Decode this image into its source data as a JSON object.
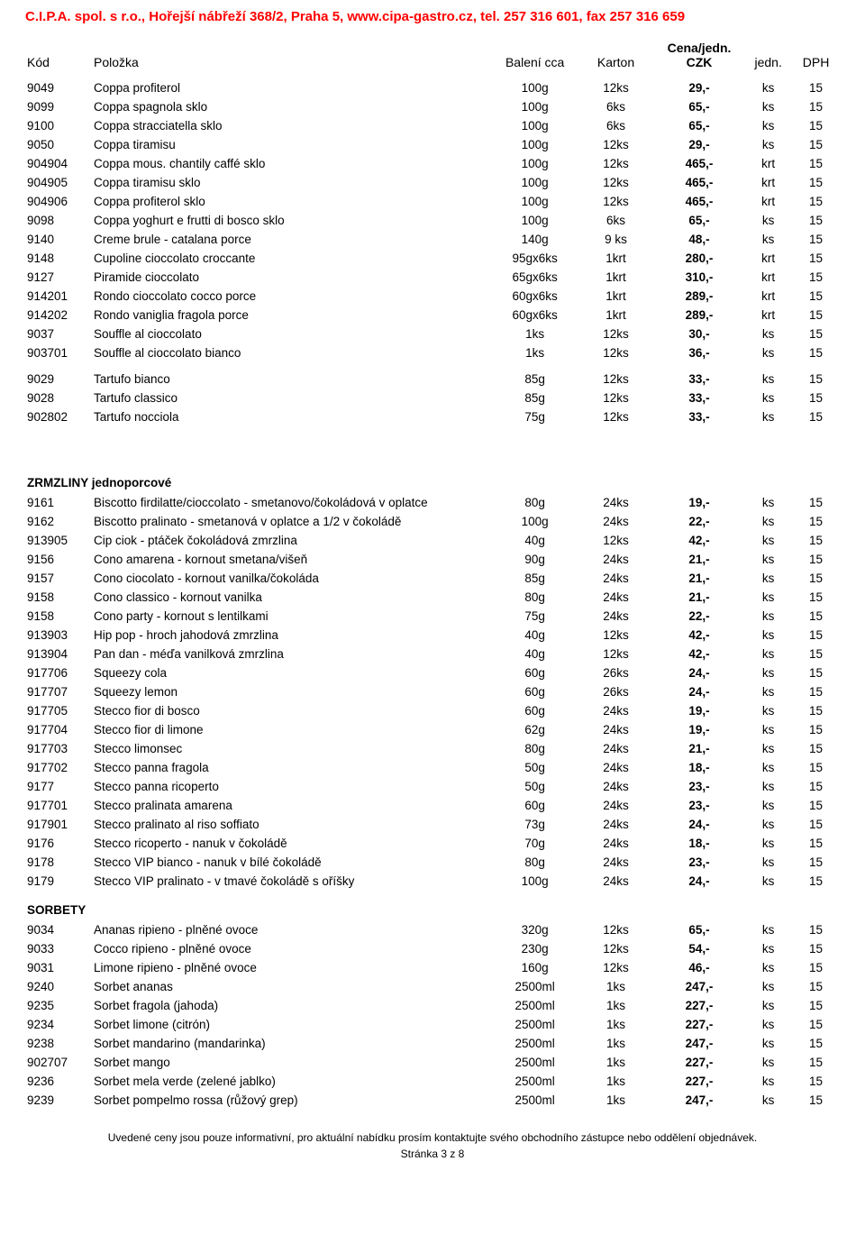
{
  "header": "C.I.P.A. spol. s r.o., Hořejší nábřeží 368/2, Praha 5, www.cipa-gastro.cz, tel. 257 316 601, fax 257 316 659",
  "columns": {
    "kod": "Kód",
    "polozka": "Položka",
    "baleni": "Balení cca",
    "karton": "Karton",
    "cena1": "Cena/jedn.",
    "cena2": "CZK",
    "jedn": "jedn.",
    "dph": "DPH"
  },
  "sections": [
    {
      "title": null,
      "rows": [
        [
          "9049",
          "Coppa profiterol",
          "100g",
          "12ks",
          "29,-",
          "ks",
          "15"
        ],
        [
          "9099",
          "Coppa spagnola sklo",
          "100g",
          "6ks",
          "65,-",
          "ks",
          "15"
        ],
        [
          "9100",
          "Coppa stracciatella sklo",
          "100g",
          "6ks",
          "65,-",
          "ks",
          "15"
        ],
        [
          "9050",
          "Coppa tiramisu",
          "100g",
          "12ks",
          "29,-",
          "ks",
          "15"
        ],
        [
          "904904",
          "Coppa mous. chantily caffé sklo",
          "100g",
          "12ks",
          "465,-",
          "krt",
          "15"
        ],
        [
          "904905",
          "Coppa tiramisu sklo",
          "100g",
          "12ks",
          "465,-",
          "krt",
          "15"
        ],
        [
          "904906",
          "Coppa profiterol sklo",
          "100g",
          "12ks",
          "465,-",
          "krt",
          "15"
        ],
        [
          "9098",
          "Coppa yoghurt e frutti di bosco sklo",
          "100g",
          "6ks",
          "65,-",
          "ks",
          "15"
        ],
        [
          "9140",
          "Creme brule - catalana porce",
          "140g",
          "9 ks",
          "48,-",
          "ks",
          "15"
        ],
        [
          "9148",
          "Cupoline cioccolato croccante",
          "95gx6ks",
          "1krt",
          "280,-",
          "krt",
          "15"
        ],
        [
          "9127",
          "Piramide cioccolato",
          "65gx6ks",
          "1krt",
          "310,-",
          "krt",
          "15"
        ],
        [
          "914201",
          "Rondo cioccolato cocco porce",
          "60gx6ks",
          "1krt",
          "289,-",
          "krt",
          "15"
        ],
        [
          "914202",
          "Rondo vaniglia fragola porce",
          "60gx6ks",
          "1krt",
          "289,-",
          "krt",
          "15"
        ],
        [
          "9037",
          "Souffle al cioccolato",
          "1ks",
          "12ks",
          "30,-",
          "ks",
          "15"
        ],
        [
          "903701",
          "Souffle al cioccolato bianco",
          "1ks",
          "12ks",
          "36,-",
          "ks",
          "15"
        ]
      ]
    },
    {
      "title": null,
      "gapBefore": true,
      "rows": [
        [
          "9029",
          "Tartufo bianco",
          "85g",
          "12ks",
          "33,-",
          "ks",
          "15"
        ],
        [
          "9028",
          "Tartufo classico",
          "85g",
          "12ks",
          "33,-",
          "ks",
          "15"
        ],
        [
          "902802",
          "Tartufo nocciola",
          "75g",
          "12ks",
          "33,-",
          "ks",
          "15"
        ]
      ]
    },
    {
      "title": "ZRMZLINY jednoporcové",
      "bigGap": true,
      "rows": [
        [
          "9161",
          "Biscotto firdilatte/cioccolato - smetanovo/čokoládová v oplatce",
          "80g",
          "24ks",
          "19,-",
          "ks",
          "15"
        ],
        [
          "9162",
          "Biscotto pralinato - smetanová v oplatce a 1/2 v čokoládě",
          "100g",
          "24ks",
          "22,-",
          "ks",
          "15"
        ],
        [
          "913905",
          "Cip ciok - ptáček čokoládová zmrzlina",
          "40g",
          "12ks",
          "42,-",
          "ks",
          "15"
        ],
        [
          "9156",
          "Cono amarena - kornout smetana/višeň",
          "90g",
          "24ks",
          "21,-",
          "ks",
          "15"
        ],
        [
          "9157",
          "Cono ciocolato - kornout vanilka/čokoláda",
          "85g",
          "24ks",
          "21,-",
          "ks",
          "15"
        ],
        [
          "9158",
          "Cono classico - kornout vanilka",
          "80g",
          "24ks",
          "21,-",
          "ks",
          "15"
        ],
        [
          "9158",
          "Cono party - kornout s lentilkami",
          "75g",
          "24ks",
          "22,-",
          "ks",
          "15"
        ],
        [
          "913903",
          "Hip pop - hroch jahodová zmrzlina",
          "40g",
          "12ks",
          "42,-",
          "ks",
          "15"
        ],
        [
          "913904",
          "Pan dan - méďa vanilková zmrzlina",
          "40g",
          "12ks",
          "42,-",
          "ks",
          "15"
        ],
        [
          "917706",
          "Squeezy cola",
          "60g",
          "26ks",
          "24,-",
          "ks",
          "15"
        ],
        [
          "917707",
          "Squeezy lemon",
          "60g",
          "26ks",
          "24,-",
          "ks",
          "15"
        ],
        [
          "917705",
          "Stecco fior di bosco",
          "60g",
          "24ks",
          "19,-",
          "ks",
          "15"
        ],
        [
          "917704",
          "Stecco fior di limone",
          "62g",
          "24ks",
          "19,-",
          "ks",
          "15"
        ],
        [
          "917703",
          "Stecco limonsec",
          "80g",
          "24ks",
          "21,-",
          "ks",
          "15"
        ],
        [
          "917702",
          "Stecco panna fragola",
          "50g",
          "24ks",
          "18,-",
          "ks",
          "15"
        ],
        [
          "9177",
          "Stecco panna ricoperto",
          "50g",
          "24ks",
          "23,-",
          "ks",
          "15"
        ],
        [
          "917701",
          "Stecco pralinata amarena",
          "60g",
          "24ks",
          "23,-",
          "ks",
          "15"
        ],
        [
          "917901",
          "Stecco pralinato al riso soffiato",
          "73g",
          "24ks",
          "24,-",
          "ks",
          "15"
        ],
        [
          "9176",
          "Stecco ricoperto - nanuk v čokoládě",
          "70g",
          "24ks",
          "18,-",
          "ks",
          "15"
        ],
        [
          "9178",
          "Stecco VIP bianco - nanuk v bílé čokoládě",
          "80g",
          "24ks",
          "23,-",
          "ks",
          "15"
        ],
        [
          "9179",
          "Stecco VIP pralinato - v tmavé čokoládě s oříšky",
          "100g",
          "24ks",
          "24,-",
          "ks",
          "15"
        ]
      ]
    },
    {
      "title": "SORBETY",
      "tight": true,
      "rows": [
        [
          "9034",
          "Ananas ripieno - plněné ovoce",
          "320g",
          "12ks",
          "65,-",
          "ks",
          "15"
        ],
        [
          "9033",
          "Cocco ripieno - plněné ovoce",
          "230g",
          "12ks",
          "54,-",
          "ks",
          "15"
        ],
        [
          "9031",
          "Limone ripieno - plněné ovoce",
          "160g",
          "12ks",
          "46,-",
          "ks",
          "15"
        ],
        [
          "9240",
          "Sorbet ananas",
          "2500ml",
          "1ks",
          "247,-",
          "ks",
          "15"
        ],
        [
          "9235",
          "Sorbet fragola (jahoda)",
          "2500ml",
          "1ks",
          "227,-",
          "ks",
          "15"
        ],
        [
          "9234",
          "Sorbet limone (citrón)",
          "2500ml",
          "1ks",
          "227,-",
          "ks",
          "15"
        ],
        [
          "9238",
          "Sorbet mandarino (mandarinka)",
          "2500ml",
          "1ks",
          "247,-",
          "ks",
          "15"
        ],
        [
          "902707",
          "Sorbet mango",
          "2500ml",
          "1ks",
          "227,-",
          "ks",
          "15"
        ],
        [
          "9236",
          "Sorbet mela verde (zelené jablko)",
          "2500ml",
          "1ks",
          "227,-",
          "ks",
          "15"
        ],
        [
          "9239",
          "Sorbet pompelmo rossa (růžový grep)",
          "2500ml",
          "1ks",
          "247,-",
          "ks",
          "15"
        ]
      ]
    }
  ],
  "footer1": "Uvedené ceny jsou pouze informativní, pro aktuální nabídku prosím kontaktujte svého obchodního zástupce nebo oddělení objednávek.",
  "footer2": "Stránka 3 z 8"
}
